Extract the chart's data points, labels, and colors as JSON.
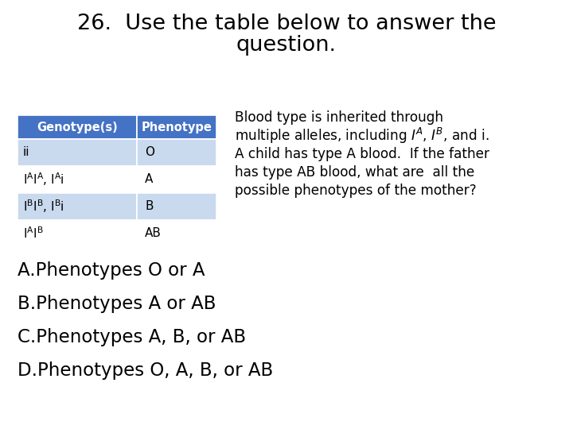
{
  "title_line1": "26.  Use the table below to answer the",
  "title_line2": "question.",
  "table_headers": [
    "Genotype(s)",
    "Phenotype"
  ],
  "header_bg": "#4472c4",
  "header_text": "#ffffff",
  "row_bg_light": "#c9d9ee",
  "row_bg_white": "#ffffff",
  "body_text": "#000000",
  "choices": [
    "A.Phenotypes O or A",
    "B.Phenotypes A or AB",
    "C.Phenotypes A, B, or AB",
    "D.Phenotypes O, A, B, or AB"
  ],
  "bg_color": "#ffffff",
  "title_fontsize": 19.5,
  "desc_fontsize": 12.2,
  "choices_fontsize": 16.5,
  "table_header_fontsize": 10.5,
  "table_body_fontsize": 11
}
